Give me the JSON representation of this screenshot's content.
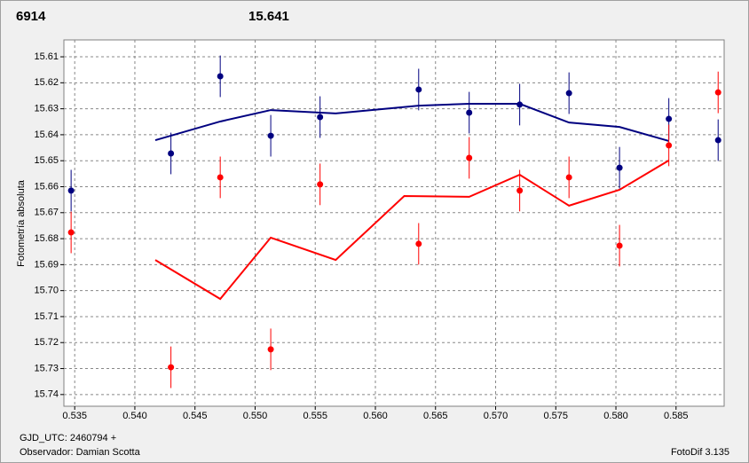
{
  "chart_data": {
    "type": "scatter",
    "annotations": [
      {
        "text": "6914",
        "color": "#ff0000"
      },
      {
        "text": "15.641",
        "color": "#000080"
      }
    ],
    "ylabel": "Fotometría absoluta",
    "xlabel": "GJD_UTC: 2460794 +",
    "observer": "Observador: Damian Scotta",
    "software": "FotoDif 3.135",
    "xlim": [
      0.5341,
      0.589
    ],
    "ylim": [
      15.7445,
      15.6035
    ],
    "xticks": [
      0.535,
      {
        "value": 0.54,
        "label": "0.540"
      },
      0.545,
      {
        "value": 0.55,
        "label": "0.550"
      },
      0.555,
      {
        "value": 0.56,
        "label": "0.560"
      },
      0.565,
      {
        "value": 0.57,
        "label": "0.570"
      },
      0.575,
      {
        "value": 0.58,
        "label": "0.580"
      },
      0.585
    ],
    "yticks": [
      15.61,
      15.62,
      15.63,
      15.64,
      15.65,
      15.66,
      15.67,
      15.68,
      15.69,
      {
        "value": 15.7,
        "label": "15.70"
      },
      15.71,
      15.72,
      15.73,
      15.74
    ],
    "grid": true,
    "series": [
      {
        "color": "#000080",
        "x": [
          0.5347,
          0.543,
          0.5471,
          0.5513,
          0.5554,
          0.5636,
          0.5678,
          0.572,
          0.5761,
          0.5803,
          0.5844,
          0.5885
        ],
        "values": [
          15.6615,
          15.6472,
          15.6175,
          15.6404,
          15.6332,
          15.6226,
          15.6315,
          15.6284,
          15.624,
          15.6527,
          15.6339,
          15.6421
        ],
        "errors": [
          0.008,
          0.008,
          0.008,
          0.008,
          0.008,
          0.008,
          0.008,
          0.008,
          0.008,
          0.008,
          0.008,
          0.008
        ]
      },
      {
        "color": "#ff0000",
        "x": [
          0.5347,
          0.543,
          0.5471,
          0.5513,
          0.5554,
          0.5636,
          0.5678,
          0.572,
          0.5761,
          0.5803,
          0.5844,
          0.5885
        ],
        "values": [
          15.6776,
          15.7295,
          15.6564,
          15.7226,
          15.6591,
          15.682,
          15.6489,
          15.6615,
          15.6564,
          15.6827,
          15.6441,
          15.6237
        ],
        "errors": [
          0.008,
          0.008,
          0.008,
          0.008,
          0.008,
          0.008,
          0.008,
          0.008,
          0.008,
          0.008,
          0.008,
          0.008
        ]
      }
    ],
    "lines": [
      {
        "color": "#000080",
        "x": [
          0.5417,
          0.5471,
          0.5513,
          0.5567,
          0.5636,
          0.5678,
          0.572,
          0.5761,
          0.5803,
          0.5844
        ],
        "values": [
          15.6421,
          15.6349,
          15.6305,
          15.6318,
          15.6288,
          15.6281,
          15.6281,
          15.6353,
          15.637,
          15.6424
        ]
      },
      {
        "color": "#ff0000",
        "x": [
          0.5417,
          0.5471,
          0.5513,
          0.5567,
          0.5624,
          0.5678,
          0.572,
          0.5761,
          0.5803,
          0.5844
        ],
        "values": [
          15.6882,
          15.7032,
          15.6796,
          15.6882,
          15.6636,
          15.6639,
          15.6554,
          15.6673,
          15.6612,
          15.6499
        ]
      }
    ]
  }
}
